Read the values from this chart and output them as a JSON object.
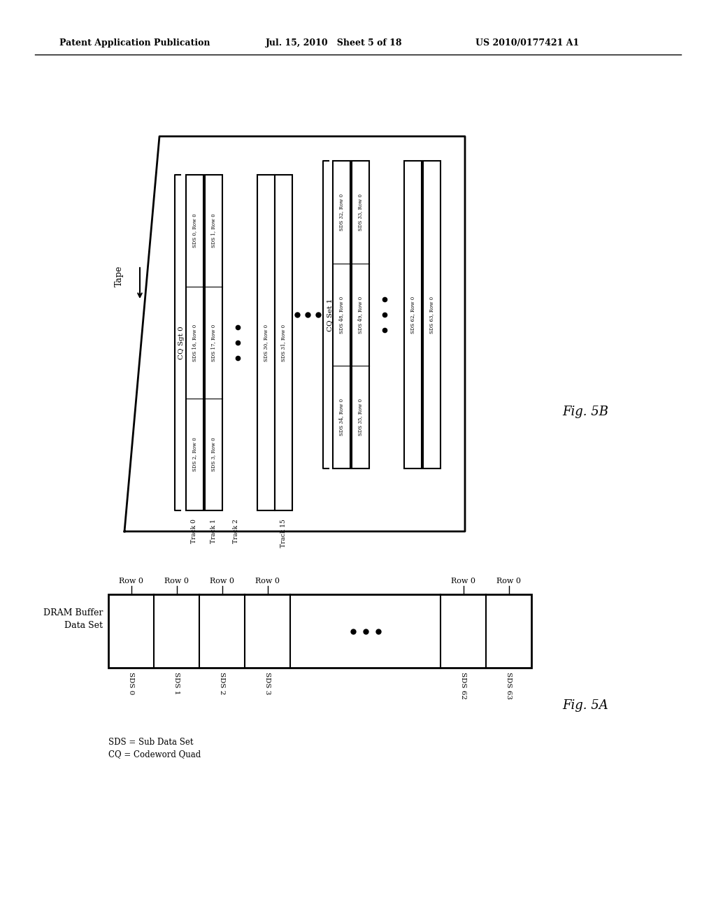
{
  "header_left": "Patent Application Publication",
  "header_mid": "Jul. 15, 2010   Sheet 5 of 18",
  "header_right": "US 2010/0177421 A1",
  "fig_a_label": "Fig. 5A",
  "fig_b_label": "Fig. 5B",
  "dram_label": "DRAM Buffer",
  "dataset_label": "Data Set",
  "sds_labels": [
    "SDS 0",
    "SDS 1",
    "SDS 2",
    "SDS 3",
    "SDS 62",
    "SDS 63"
  ],
  "row_labels": [
    "Row 0",
    "Row 0",
    "Row 0",
    "Row 0",
    "Row 0",
    "Row 0"
  ],
  "legend1": "SDS = Sub Data Set",
  "legend2": "CQ = Codeword Quad",
  "tape_label": "Tape",
  "cq0_label": "CQ Sgt 0",
  "cq1_label": "CQ Set 1",
  "track_labels": [
    "Track 0",
    "Track 1",
    "Track 2",
    "Track 15"
  ],
  "cq0_left_cells": [
    "SDS 0, Row 0",
    "SDS 16, Row 0",
    "SDS 2, Row 0"
  ],
  "cq0_right_cells": [
    "SDS 1, Row 0",
    "SDS 17, Row 0",
    "SDS 3, Row 0"
  ],
  "cq0_far_left": "SDS 30, Row 0",
  "cq0_far_right": "SDS 31, Row 0",
  "cq1_left_cells": [
    "SDS 32, Row 0",
    "SDS 48, Row 0",
    "SDS 34, Row 0"
  ],
  "cq1_right_cells": [
    "SDS 33, Row 0",
    "SDS 49, Row 0",
    "SDS 35, Row 0"
  ],
  "cq1_far_left": "SDS 62, Row 0",
  "cq1_far_right": "SDS 63, Row 0",
  "bg_color": "#ffffff",
  "line_color": "#000000"
}
